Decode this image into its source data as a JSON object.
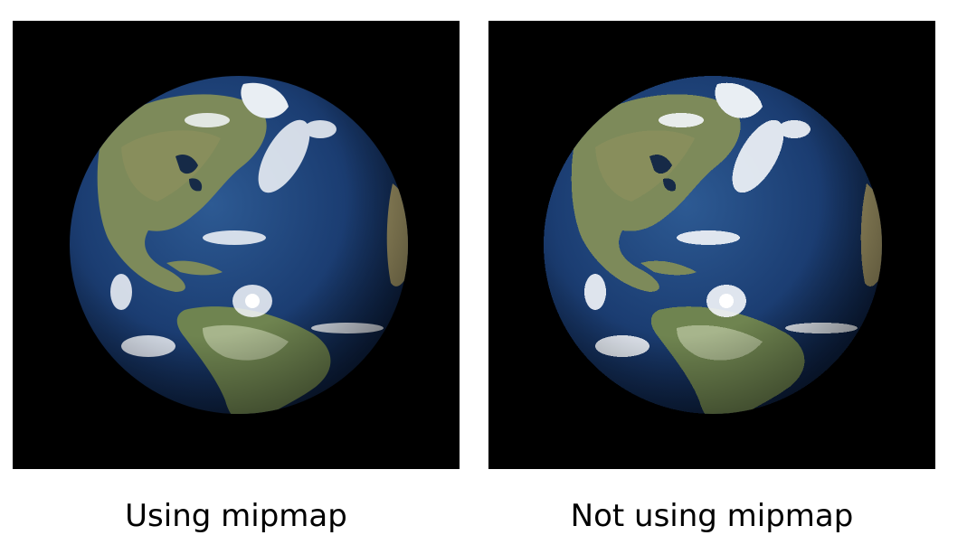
{
  "panels": [
    {
      "caption": "Using mipmap",
      "image": "earth-globe-smooth"
    },
    {
      "caption": "Not using mipmap",
      "image": "earth-globe-aliased"
    }
  ],
  "colors": {
    "background": "#000000",
    "ocean": "#1b3d72",
    "land": "#7d8a5a",
    "cloud": "#f4f7fb"
  }
}
